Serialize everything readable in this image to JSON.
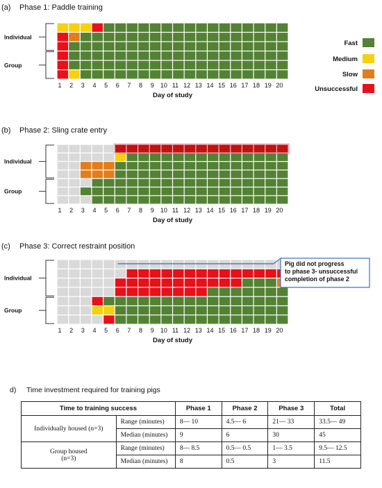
{
  "legend": [
    {
      "label": "Fast",
      "color": "#548235"
    },
    {
      "label": "Medium",
      "color": "#f5d10f"
    },
    {
      "label": "Slow",
      "color": "#e27d1c"
    },
    {
      "label": "Unsuccessful",
      "color": "#e8101a"
    }
  ],
  "colors": {
    "none": "#d9d9d9",
    "pink": "#f4b6c8",
    "dark_red": "#c0120f"
  },
  "chart_data": [
    {
      "type": "heatmap",
      "panel_label": "(a)",
      "title": "Phase  1:  Paddle   training",
      "xlabel": "Day of study",
      "x": [
        1,
        2,
        3,
        4,
        5,
        6,
        7,
        8,
        9,
        10,
        11,
        12,
        13,
        14,
        15,
        16,
        17,
        18,
        19,
        20
      ],
      "groups": [
        {
          "label": "Individual",
          "rows": [
            0,
            1,
            2
          ]
        },
        {
          "label": "Group",
          "rows": [
            3,
            4,
            5
          ]
        }
      ],
      "pink_rows": [],
      "rows": [
        "MMMUFFFFFFFFFFFFFFFF",
        "USFFFFFFFFFFFFFFFFFF",
        "UFFFFFFFFFFFFFFFFFFF",
        "UFFFFFFFFFFFFFFFFFFF",
        "UFFFFFFFFFFFFFFFFFFF",
        "UMFFFFFFFFFFFFFFFFFF"
      ]
    },
    {
      "type": "heatmap",
      "panel_label": "(b)",
      "title": "Phase  2:  Sling   crate   entry",
      "xlabel": "Day of study",
      "x": [
        1,
        2,
        3,
        4,
        5,
        6,
        7,
        8,
        9,
        10,
        11,
        12,
        13,
        14,
        15,
        16,
        17,
        18,
        19,
        20
      ],
      "groups": [
        {
          "label": "Individual",
          "rows": [
            0,
            1,
            2,
            3
          ]
        },
        {
          "label": "Group",
          "rows": [
            4,
            5,
            6
          ]
        }
      ],
      "pink_rows": [
        0
      ],
      "rows": [
        "NNNNNRRRRRRRRRRRRRRR",
        "NNNNNMFFFFFFFFFFFFFF",
        "NNSSSFFFFFFFFFFFFFFF",
        "NNSSSFFFFFFFFFFFFFFF",
        "NNNFFFFFFFFFFFFFFFFF",
        "NNFFFFFFFFFFFFFFFFFF",
        "NNNFFFFFFFFFFFFFFFFF"
      ]
    },
    {
      "type": "heatmap",
      "panel_label": "(c)",
      "title": "Phase  3:  Correct   restraint   position",
      "xlabel": "Day of study",
      "x": [
        1,
        2,
        3,
        4,
        5,
        6,
        7,
        8,
        9,
        10,
        11,
        12,
        13,
        14,
        15,
        16,
        17,
        18,
        19,
        20
      ],
      "groups": [
        {
          "label": "Individual",
          "rows": [
            0,
            1,
            2,
            3
          ]
        },
        {
          "label": "Group",
          "rows": [
            4,
            5,
            6
          ]
        }
      ],
      "pink_rows": [],
      "callout": "Pig did not progress\nto phase 3- unsuccessful\ncompletion of phase 2",
      "rows": [
        "NNNNNNNNNNNNNNNNNNNN",
        "NNNNNNUUUUUUUUUUUUUU",
        "NNNNNUUUUUUUUUUUFFFS",
        "NNNNNUUUUUUUUFFFFFFF",
        "NNNUFFFFFFFFFFFFFFFF",
        "NNNMMFFFFFFFFFFFFFFF",
        "NNNNUFFFFFFFFFFFFFFF"
      ]
    }
  ],
  "table": {
    "section_label": "d)",
    "title": "Time investment required for training pigs",
    "headers": [
      "Time to training success",
      "Phase 1",
      "Phase 2",
      "Phase 3",
      "Total"
    ],
    "groups": [
      {
        "label": "Individually housed (n=3)",
        "rows": [
          {
            "stat": "Range (minutes)",
            "values": [
              "8— 10",
              "4.5— 6",
              "21— 33",
              "33.5— 49"
            ]
          },
          {
            "stat": "Median (minutes)",
            "values": [
              "9",
              "6",
              "30",
              "45"
            ]
          }
        ]
      },
      {
        "label": "Group housed\n(n=3)",
        "rows": [
          {
            "stat": "Range (minutes)",
            "values": [
              "8— 8.5",
              "0.5— 0.5",
              "1— 3.5",
              "9.5— 12.5"
            ]
          },
          {
            "stat": "Median (minutes)",
            "values": [
              "8",
              "0.5",
              "3",
              "11.5"
            ]
          }
        ]
      }
    ]
  }
}
